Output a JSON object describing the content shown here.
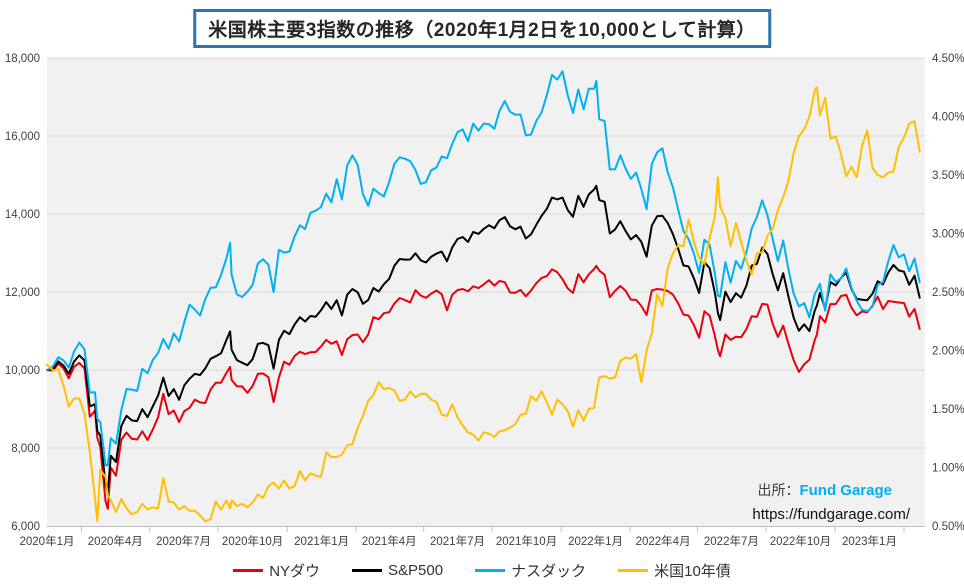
{
  "title": "米国株主要3指数の推移（2020年1月2日を10,000として計算）",
  "source": {
    "label": "出所：",
    "brand": "Fund Garage",
    "url": "https://fundgarage.com/"
  },
  "colors": {
    "nydow": "#e8000d",
    "sp500": "#000000",
    "nasdaq": "#00b0f0",
    "bond10y": "#ffc000",
    "plot_background": "#f1f1f1",
    "gridline": "#d9d9d9",
    "axis_line": "#c0c0c0",
    "axis_text": "#404040",
    "title_border": "#2e74b5"
  },
  "legend": [
    {
      "label": "NYダウ",
      "color": "#e8000d"
    },
    {
      "label": "S&P500",
      "color": "#000000"
    },
    {
      "label": "ナスダック",
      "color": "#00b0f0"
    },
    {
      "label": "米国10年債",
      "color": "#ffc000"
    }
  ],
  "chart_data": {
    "type": "line",
    "title": "米国株主要3指数の推移（2020年1月2日を10,000として計算）",
    "x_unit": "days since 2020-01-02 (weekly closes, key turning points inserted)",
    "grid": "horizontal",
    "legend_position": "bottom",
    "x": [
      0,
      8,
      15,
      22,
      29,
      36,
      43,
      50,
      57,
      64,
      67,
      71,
      78,
      81,
      85,
      92,
      99,
      106,
      113,
      120,
      127,
      134,
      141,
      148,
      155,
      162,
      169,
      176,
      183,
      190,
      197,
      204,
      211,
      218,
      225,
      232,
      239,
      244,
      246,
      253,
      260,
      267,
      274,
      281,
      288,
      295,
      302,
      309,
      316,
      323,
      330,
      337,
      344,
      351,
      358,
      365,
      372,
      379,
      386,
      393,
      400,
      407,
      414,
      421,
      428,
      435,
      442,
      449,
      456,
      463,
      470,
      477,
      484,
      491,
      498,
      505,
      512,
      519,
      526,
      533,
      540,
      547,
      554,
      561,
      568,
      575,
      582,
      589,
      596,
      603,
      610,
      617,
      624,
      631,
      638,
      645,
      652,
      659,
      666,
      673,
      680,
      687,
      694,
      701,
      708,
      715,
      722,
      729,
      732,
      736,
      743,
      750,
      757,
      764,
      771,
      778,
      785,
      792,
      799,
      806,
      813,
      820,
      827,
      834,
      841,
      848,
      855,
      862,
      869,
      876,
      883,
      890,
      894,
      897,
      904,
      911,
      918,
      925,
      932,
      939,
      946,
      953,
      960,
      967,
      974,
      981,
      988,
      995,
      1002,
      1009,
      1016,
      1023,
      1026,
      1030,
      1037,
      1044,
      1051,
      1058,
      1065,
      1072,
      1079,
      1086,
      1093,
      1100,
      1107,
      1114,
      1121,
      1128,
      1135,
      1142,
      1149,
      1156,
      1163
    ],
    "series": [
      {
        "name": "NYダウ",
        "axis": "left",
        "color": "#e8000d",
        "values": [
          10000,
          9984,
          10166,
          10042,
          9788,
          10081,
          10183,
          10042,
          8801,
          8959,
          8262,
          8031,
          6642,
          6440,
          7495,
          7293,
          8216,
          8397,
          8235,
          8218,
          8428,
          8204,
          8474,
          8792,
          9391,
          8870,
          8961,
          8665,
          8946,
          9032,
          9239,
          9169,
          9154,
          9502,
          9675,
          9674,
          9925,
          10080,
          9745,
          9583,
          9580,
          9413,
          9589,
          9902,
          9909,
          9815,
          9180,
          9811,
          10212,
          10136,
          10360,
          10467,
          10407,
          10453,
          10461,
          10601,
          10772,
          10673,
          10737,
          10385,
          10789,
          10896,
          10909,
          10714,
          10909,
          11354,
          11302,
          11456,
          11483,
          11708,
          11847,
          11792,
          11734,
          12047,
          11909,
          11849,
          11960,
          12039,
          11943,
          11531,
          11927,
          12049,
          12078,
          12015,
          12145,
          12101,
          12196,
          12302,
          12165,
          12281,
          12251,
          11988,
          11980,
          12054,
          11890,
          12036,
          12226,
          12358,
          12407,
          12583,
          12505,
          12332,
          12089,
          11978,
          12460,
          12250,
          12453,
          12587,
          12673,
          12550,
          12440,
          11869,
          12028,
          12155,
          12033,
          11805,
          11798,
          11644,
          11411,
          12039,
          12076,
          12061,
          12027,
          11934,
          11712,
          11423,
          11396,
          11153,
          10829,
          11505,
          11396,
          10874,
          10518,
          10353,
          10911,
          10772,
          10855,
          10838,
          11049,
          11377,
          11362,
          11694,
          11676,
          11182,
          10848,
          11137,
          10676,
          10250,
          9950,
          10148,
          10265,
          10767,
          10911,
          11383,
          11224,
          11690,
          11689,
          11897,
          11926,
          11596,
          11403,
          11501,
          11482,
          11649,
          11882,
          11561,
          11770,
          11752,
          11732,
          11717,
          11368,
          11566,
          11053
        ]
      },
      {
        "name": "S&P500",
        "axis": "left",
        "color": "#000000",
        "values": [
          10000,
          10022,
          10221,
          10114,
          9902,
          10215,
          10375,
          10246,
          9067,
          9123,
          8432,
          8321,
          7075,
          6867,
          7800,
          7640,
          8564,
          8825,
          8708,
          8690,
          8994,
          8791,
          9070,
          9343,
          9804,
          9334,
          9509,
          9236,
          9607,
          9776,
          9899,
          9871,
          10040,
          10286,
          10353,
          10427,
          10768,
          10989,
          10519,
          10255,
          10187,
          10123,
          10276,
          10672,
          10694,
          10635,
          10037,
          10771,
          11004,
          10921,
          11167,
          11354,
          11243,
          11385,
          11366,
          11529,
          11741,
          11566,
          11790,
          11400,
          11931,
          12078,
          11992,
          11698,
          11793,
          12103,
          12011,
          12201,
          12339,
          12674,
          12846,
          12830,
          12833,
          12993,
          12812,
          12757,
          12904,
          12984,
          13036,
          12787,
          13140,
          13358,
          13410,
          13281,
          13542,
          13490,
          13619,
          13714,
          13634,
          13840,
          13920,
          13687,
          13607,
          13674,
          13373,
          13478,
          13723,
          13950,
          14134,
          14420,
          14374,
          14420,
          14101,
          13929,
          14463,
          14184,
          14503,
          14629,
          14722,
          14356,
          14313,
          13499,
          13604,
          13815,
          13564,
          13349,
          13459,
          13287,
          12904,
          13699,
          13944,
          13953,
          13775,
          13484,
          13112,
          12683,
          12655,
          12351,
          11974,
          12763,
          12612,
          11974,
          11465,
          11280,
          12007,
          11741,
          11968,
          11857,
          12161,
          12677,
          12723,
          13137,
          12977,
          12456,
          12044,
          12483,
          11888,
          11335,
          11007,
          11172,
          10998,
          11519,
          11655,
          11974,
          11575,
          12256,
          12170,
          12358,
          12499,
          12075,
          11823,
          11802,
          11787,
          11955,
          12275,
          12195,
          12496,
          12695,
          12554,
          12520,
          12186,
          12419,
          11854
        ]
      },
      {
        "name": "ナスダック",
        "axis": "left",
        "color": "#00b0f0",
        "values": [
          10000,
          10095,
          10326,
          10245,
          10065,
          10472,
          10703,
          10533,
          9422,
          9432,
          8745,
          8661,
          7567,
          7546,
          8251,
          8109,
          8968,
          9514,
          9497,
          9464,
          10032,
          9915,
          10256,
          10437,
          10794,
          10546,
          10939,
          10731,
          11227,
          11677,
          11552,
          11398,
          11818,
          12110,
          12119,
          12441,
          12864,
          13260,
          12442,
          11938,
          11871,
          12004,
          12181,
          12736,
          12838,
          12701,
          12002,
          13083,
          13010,
          13039,
          13425,
          13709,
          13614,
          14030,
          14084,
          14175,
          14520,
          14297,
          14895,
          14376,
          15240,
          15502,
          15259,
          14509,
          14210,
          14650,
          14535,
          14451,
          14826,
          15288,
          15455,
          15416,
          15357,
          15125,
          14771,
          14816,
          15122,
          15193,
          15474,
          15431,
          15794,
          16101,
          16170,
          15868,
          16319,
          16138,
          16317,
          16303,
          16184,
          16641,
          16898,
          16624,
          16546,
          16550,
          16021,
          16036,
          16384,
          16597,
          17045,
          17567,
          17445,
          17660,
          17038,
          16591,
          17192,
          16685,
          17216,
          17207,
          17413,
          16427,
          16381,
          15144,
          15146,
          15506,
          15168,
          14901,
          15061,
          14642,
          14126,
          15281,
          15583,
          15685,
          15080,
          14684,
          14121,
          13566,
          13357,
          12984,
          12489,
          13342,
          13212,
          12472,
          11909,
          11876,
          12767,
          12239,
          12797,
          12595,
          13016,
          13628,
          13922,
          14350,
          13974,
          13354,
          12792,
          13321,
          12591,
          11953,
          11632,
          11715,
          11351,
          11944,
          12045,
          12210,
          11521,
          12453,
          12259,
          12347,
          12605,
          12104,
          11774,
          11546,
          11511,
          11624,
          12185,
          12252,
          12782,
          13206,
          12888,
          12964,
          12533,
          12856,
          12251
        ]
      },
      {
        "name": "米国10年債",
        "axis": "right",
        "color": "#ffc000",
        "unit": "%",
        "values": [
          1.88,
          1.83,
          1.84,
          1.7,
          1.52,
          1.59,
          1.59,
          1.46,
          1.13,
          0.74,
          0.54,
          0.98,
          0.92,
          0.76,
          0.72,
          0.62,
          0.73,
          0.65,
          0.6,
          0.62,
          0.69,
          0.64,
          0.66,
          0.65,
          0.91,
          0.71,
          0.7,
          0.64,
          0.67,
          0.63,
          0.63,
          0.59,
          0.54,
          0.56,
          0.71,
          0.64,
          0.72,
          0.65,
          0.72,
          0.67,
          0.69,
          0.66,
          0.7,
          0.77,
          0.74,
          0.84,
          0.87,
          0.82,
          0.89,
          0.82,
          0.84,
          0.97,
          0.89,
          0.95,
          0.93,
          0.92,
          1.13,
          1.09,
          1.09,
          1.11,
          1.19,
          1.2,
          1.34,
          1.44,
          1.57,
          1.62,
          1.73,
          1.67,
          1.68,
          1.66,
          1.57,
          1.58,
          1.65,
          1.6,
          1.63,
          1.63,
          1.58,
          1.56,
          1.45,
          1.44,
          1.54,
          1.43,
          1.36,
          1.3,
          1.28,
          1.23,
          1.3,
          1.29,
          1.26,
          1.31,
          1.32,
          1.34,
          1.37,
          1.45,
          1.46,
          1.61,
          1.57,
          1.65,
          1.56,
          1.45,
          1.58,
          1.54,
          1.48,
          1.35,
          1.49,
          1.4,
          1.5,
          1.51,
          1.63,
          1.77,
          1.78,
          1.76,
          1.77,
          1.91,
          1.94,
          1.93,
          1.97,
          1.73,
          2.0,
          2.15,
          2.48,
          2.38,
          2.7,
          2.83,
          2.9,
          2.89,
          3.12,
          2.93,
          2.79,
          2.74,
          2.96,
          3.15,
          3.48,
          3.23,
          3.13,
          2.89,
          3.09,
          2.93,
          2.77,
          2.65,
          2.83,
          2.84,
          2.98,
          3.04,
          3.2,
          3.31,
          3.45,
          3.69,
          3.83,
          3.89,
          4.0,
          4.22,
          4.25,
          4.01,
          4.16,
          3.81,
          3.83,
          3.68,
          3.49,
          3.57,
          3.48,
          3.75,
          3.88,
          3.56,
          3.5,
          3.48,
          3.52,
          3.53,
          3.74,
          3.82,
          3.94,
          3.96,
          3.7
        ]
      }
    ],
    "left_axis": {
      "min": 6000,
      "max": 18000,
      "tick_values": [
        6000,
        8000,
        10000,
        12000,
        14000,
        16000,
        18000
      ],
      "tick_labels": [
        "6,000",
        "8,000",
        "10,000",
        "12,000",
        "14,000",
        "16,000",
        "18,000"
      ]
    },
    "right_axis": {
      "min": 0.5,
      "max": 4.5,
      "tick_values": [
        0.5,
        1.0,
        1.5,
        2.0,
        2.5,
        3.0,
        3.5,
        4.0,
        4.5
      ],
      "tick_labels": [
        "0.50%",
        "1.00%",
        "1.50%",
        "2.00%",
        "2.50%",
        "3.00%",
        "3.50%",
        "4.00%",
        "4.50%"
      ]
    },
    "x_axis": {
      "labels": [
        {
          "label": "2020年1月",
          "day": 0
        },
        {
          "label": "2020年4月",
          "day": 91
        },
        {
          "label": "2020年7月",
          "day": 182
        },
        {
          "label": "2020年10月",
          "day": 274
        },
        {
          "label": "2021年1月",
          "day": 366
        },
        {
          "label": "2021年4月",
          "day": 456
        },
        {
          "label": "2021年7月",
          "day": 547
        },
        {
          "label": "2021年10月",
          "day": 639
        },
        {
          "label": "2022年1月",
          "day": 731
        },
        {
          "label": "2022年4月",
          "day": 821
        },
        {
          "label": "2022年7月",
          "day": 912
        },
        {
          "label": "2022年10月",
          "day": 1004
        },
        {
          "label": "2023年1月",
          "day": 1096
        }
      ],
      "tick_offset_days": 46
    }
  }
}
